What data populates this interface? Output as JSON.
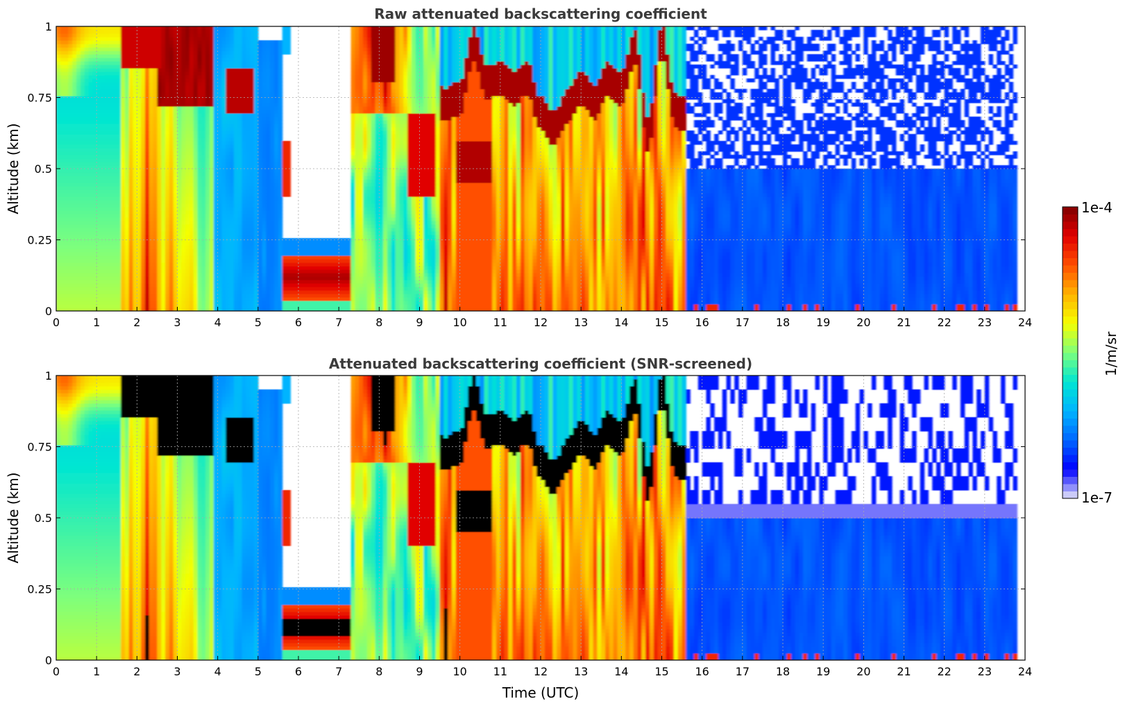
{
  "colors": {
    "colormap": [
      "#e8e8f8",
      "#0000ff",
      "#0066ff",
      "#00b4ff",
      "#00e6d2",
      "#7dff7d",
      "#f5ff00",
      "#ffb400",
      "#ff5000",
      "#e10000",
      "#800000"
    ],
    "saturated_screened": "#000000",
    "missing": "#ffffff",
    "title_text": "#3b3b3b"
  },
  "chart_data": [
    {
      "type": "heatmap",
      "title": "Raw attenuated backscattering coefficient",
      "xlabel": "",
      "ylabel": "Altitude (km)",
      "xlim": [
        0,
        24
      ],
      "ylim": [
        0,
        1
      ],
      "x_ticks": [
        "0",
        "1",
        "2",
        "3",
        "4",
        "5",
        "6",
        "7",
        "8",
        "9",
        "10",
        "11",
        "12",
        "13",
        "14",
        "15",
        "16",
        "17",
        "18",
        "19",
        "20",
        "21",
        "22",
        "23",
        "24"
      ],
      "y_ticks": [
        "0",
        "0.25",
        "0.5",
        "0.75",
        "1"
      ],
      "grid": true,
      "colorscale": "log",
      "zlim": [
        1e-07,
        0.0001
      ],
      "screened": false
    },
    {
      "type": "heatmap",
      "title": "Attenuated backscattering coefficient (SNR-screened)",
      "xlabel": "Time (UTC)",
      "ylabel": "Altitude (km)",
      "xlim": [
        0,
        24
      ],
      "ylim": [
        0,
        1
      ],
      "x_ticks": [
        "0",
        "1",
        "2",
        "3",
        "4",
        "5",
        "6",
        "7",
        "8",
        "9",
        "10",
        "11",
        "12",
        "13",
        "14",
        "15",
        "16",
        "17",
        "18",
        "19",
        "20",
        "21",
        "22",
        "23",
        "24"
      ],
      "y_ticks": [
        "0",
        "0.25",
        "0.5",
        "0.75",
        "1"
      ],
      "grid": true,
      "colorscale": "log",
      "zlim": [
        1e-07,
        0.0001
      ],
      "screened": true
    }
  ],
  "colorbar": {
    "label": "1/m/sr",
    "max_label": "1e-4",
    "min_label": "1e-7"
  }
}
